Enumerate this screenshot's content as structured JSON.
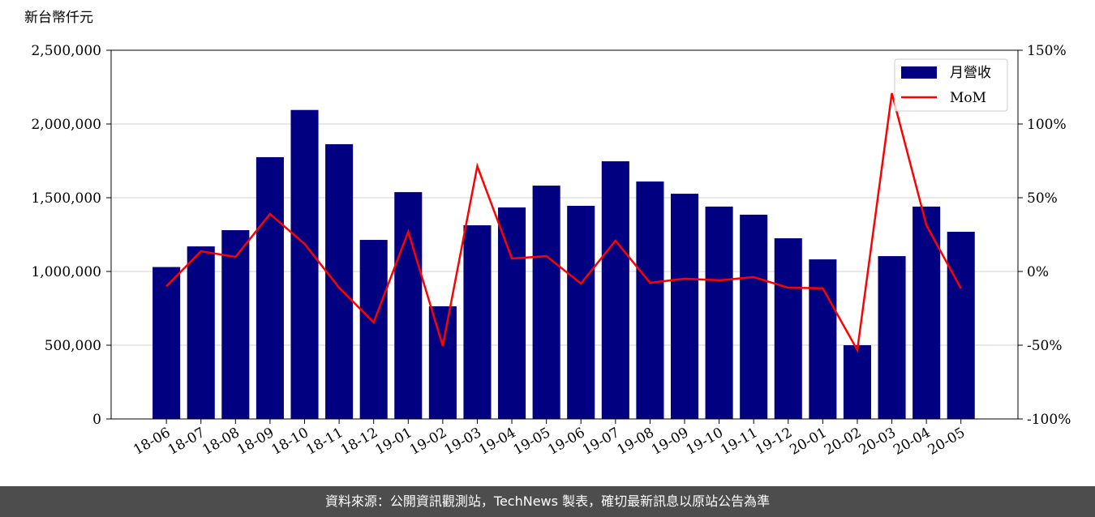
{
  "chart_data": {
    "type": "bar",
    "y_label": "新台幣仟元",
    "categories": [
      "18-06",
      "18-07",
      "18-08",
      "18-09",
      "18-10",
      "18-11",
      "18-12",
      "19-01",
      "19-02",
      "19-03",
      "19-04",
      "19-05",
      "19-06",
      "19-07",
      "19-08",
      "19-09",
      "19-10",
      "19-11",
      "19-12",
      "20-01",
      "20-02",
      "20-03",
      "20-04",
      "20-05"
    ],
    "series": [
      {
        "name": "月營收",
        "type": "bar",
        "color": "#000080",
        "axis": "y",
        "values": [
          1030000,
          1170000,
          1280000,
          1775000,
          2095000,
          1863000,
          1214000,
          1538000,
          764000,
          1313000,
          1434000,
          1582000,
          1445000,
          1747000,
          1610000,
          1527000,
          1440000,
          1385000,
          1225000,
          1082000,
          500000,
          1104000,
          1440000,
          1269000
        ]
      },
      {
        "name": "MoM",
        "type": "line",
        "color": "#ff0000",
        "axis": "y2",
        "values": [
          -10,
          13.7,
          9.9,
          39,
          18.7,
          -11,
          -34.6,
          27,
          -50.5,
          71.4,
          8.8,
          10.4,
          -8.2,
          20.9,
          -7.7,
          -4.9,
          -6,
          -3.8,
          -11,
          -11.4,
          -53.3,
          120.9,
          31.3,
          -11.5
        ]
      }
    ],
    "ylim": [
      0,
      2500000
    ],
    "yticks": [
      0,
      {
        "value": 500000,
        "label": "500,000"
      },
      {
        "value": 1000000,
        "label": "1,000,000"
      },
      {
        "value": 1500000,
        "label": "1,500,000"
      },
      {
        "value": 2000000,
        "label": "2,000,000"
      },
      {
        "value": 2500000,
        "label": "2,500,000"
      }
    ],
    "y2lim": [
      -100,
      150
    ],
    "y2ticks": [
      {
        "value": -100,
        "label": "-100%"
      },
      {
        "value": -50,
        "label": "-50%"
      },
      {
        "value": 0,
        "label": "0%"
      },
      {
        "value": 50,
        "label": "50%"
      },
      {
        "value": 100,
        "label": "100%"
      },
      {
        "value": 150,
        "label": "150%"
      }
    ],
    "grid": true,
    "legend": "upper right",
    "source": "資料來源：公開資訊觀測站，TechNews 製表，確切最新訊息以原站公告為準"
  }
}
